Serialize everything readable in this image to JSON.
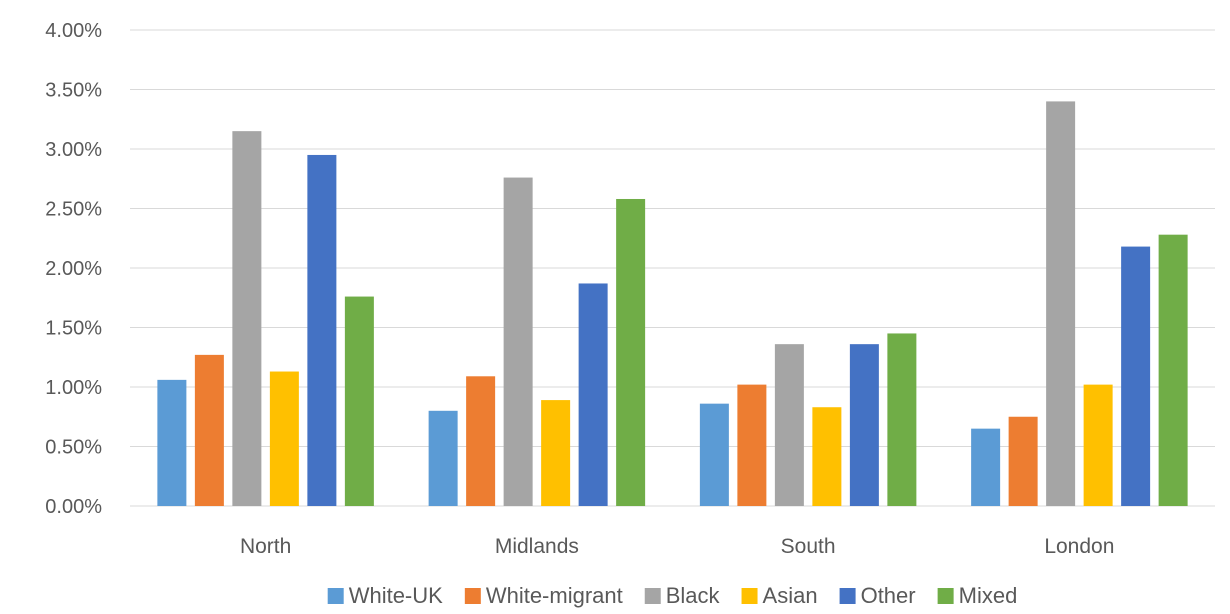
{
  "chart_data": {
    "type": "bar",
    "categories": [
      "North",
      "Midlands",
      "South",
      "London"
    ],
    "series": [
      {
        "name": "White-UK",
        "color": "#5B9BD5",
        "values": [
          1.06,
          0.8,
          0.86,
          0.65
        ]
      },
      {
        "name": "White-migrant",
        "color": "#ED7D31",
        "values": [
          1.27,
          1.09,
          1.02,
          0.75
        ]
      },
      {
        "name": "Black",
        "color": "#A5A5A5",
        "values": [
          3.15,
          2.76,
          1.36,
          3.4
        ]
      },
      {
        "name": "Asian",
        "color": "#FFC000",
        "values": [
          1.13,
          0.89,
          0.83,
          1.02
        ]
      },
      {
        "name": "Other",
        "color": "#4472C4",
        "values": [
          2.95,
          1.87,
          1.36,
          2.18
        ]
      },
      {
        "name": "Mixed",
        "color": "#70AD47",
        "values": [
          1.76,
          2.58,
          1.45,
          2.28
        ]
      }
    ],
    "ylim": [
      0,
      4
    ],
    "yticks": [
      "0.00%",
      "0.50%",
      "1.00%",
      "1.50%",
      "2.00%",
      "2.50%",
      "3.00%",
      "3.50%",
      "4.00%"
    ],
    "title": "",
    "xlabel": "",
    "ylabel": "",
    "grid": true,
    "legend_position": "bottom"
  }
}
